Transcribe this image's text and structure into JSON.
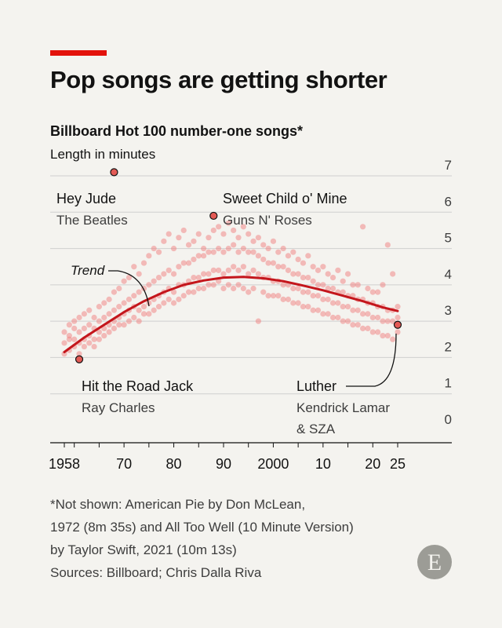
{
  "header": {
    "title": "Pop songs are getting shorter",
    "subtitle": "Billboard Hot 100 number-one songs*",
    "unit": "Length in minutes"
  },
  "chart_data": {
    "type": "scatter",
    "x_ticks": [
      {
        "value": 1958,
        "label": "1958"
      },
      {
        "value": 1970,
        "label": "70"
      },
      {
        "value": 1980,
        "label": "80"
      },
      {
        "value": 1990,
        "label": "90"
      },
      {
        "value": 2000,
        "label": "2000"
      },
      {
        "value": 2010,
        "label": "10"
      },
      {
        "value": 2020,
        "label": "20"
      },
      {
        "value": 2025,
        "label": "25"
      }
    ],
    "y_ticks": [
      0,
      1,
      2,
      3,
      4,
      5,
      6,
      7
    ],
    "xlim": [
      1958,
      2025
    ],
    "ylim": [
      0,
      7
    ],
    "colors": {
      "dots": "#f08080",
      "trend": "#c4161c",
      "highlight": "#e35a55",
      "grid": "#cfcfcf",
      "accent": "#e3120b"
    },
    "trend": [
      {
        "x": 1958,
        "y": 2.15
      },
      {
        "x": 1962,
        "y": 2.55
      },
      {
        "x": 1966,
        "y": 2.9
      },
      {
        "x": 1970,
        "y": 3.25
      },
      {
        "x": 1974,
        "y": 3.55
      },
      {
        "x": 1978,
        "y": 3.8
      },
      {
        "x": 1982,
        "y": 4.0
      },
      {
        "x": 1986,
        "y": 4.12
      },
      {
        "x": 1990,
        "y": 4.2
      },
      {
        "x": 1994,
        "y": 4.22
      },
      {
        "x": 1998,
        "y": 4.18
      },
      {
        "x": 2002,
        "y": 4.1
      },
      {
        "x": 2006,
        "y": 3.98
      },
      {
        "x": 2010,
        "y": 3.85
      },
      {
        "x": 2014,
        "y": 3.7
      },
      {
        "x": 2018,
        "y": 3.55
      },
      {
        "x": 2022,
        "y": 3.38
      },
      {
        "x": 2025,
        "y": 3.28
      }
    ],
    "trend_label": "Trend",
    "highlights": [
      {
        "x": 1968,
        "y": 7.1,
        "song": "Hey Jude",
        "artist": "The Beatles"
      },
      {
        "x": 1988,
        "y": 5.9,
        "song": "Sweet Child o' Mine",
        "artist": "Guns N' Roses"
      },
      {
        "x": 1961,
        "y": 1.95,
        "song": "Hit the Road Jack",
        "artist": "Ray Charles"
      },
      {
        "x": 2025,
        "y": 2.9,
        "song": "Luther",
        "artist_line1": "Kendrick Lamar",
        "artist_line2": "& SZA"
      }
    ],
    "series": [
      {
        "name": "",
        "points": [
          [
            1958,
            2.4
          ],
          [
            1958,
            2.7
          ],
          [
            1958,
            2.1
          ],
          [
            1959,
            2.5
          ],
          [
            1959,
            2.9
          ],
          [
            1959,
            2.2
          ],
          [
            1959,
            2.6
          ],
          [
            1960,
            2.3
          ],
          [
            1960,
            2.8
          ],
          [
            1960,
            2.5
          ],
          [
            1960,
            3.0
          ],
          [
            1961,
            2.4
          ],
          [
            1961,
            2.1
          ],
          [
            1961,
            2.7
          ],
          [
            1961,
            3.1
          ],
          [
            1962,
            2.5
          ],
          [
            1962,
            2.3
          ],
          [
            1962,
            2.8
          ],
          [
            1962,
            3.2
          ],
          [
            1963,
            2.6
          ],
          [
            1963,
            2.4
          ],
          [
            1963,
            2.9
          ],
          [
            1963,
            3.3
          ],
          [
            1964,
            2.5
          ],
          [
            1964,
            2.8
          ],
          [
            1964,
            3.1
          ],
          [
            1964,
            2.3
          ],
          [
            1965,
            2.7
          ],
          [
            1965,
            3.0
          ],
          [
            1965,
            2.5
          ],
          [
            1965,
            3.4
          ],
          [
            1966,
            2.8
          ],
          [
            1966,
            3.1
          ],
          [
            1966,
            2.6
          ],
          [
            1966,
            3.5
          ],
          [
            1967,
            2.9
          ],
          [
            1967,
            3.2
          ],
          [
            1967,
            3.6
          ],
          [
            1967,
            2.7
          ],
          [
            1968,
            3.0
          ],
          [
            1968,
            3.3
          ],
          [
            1968,
            3.8
          ],
          [
            1968,
            2.8
          ],
          [
            1969,
            3.1
          ],
          [
            1969,
            3.4
          ],
          [
            1969,
            3.9
          ],
          [
            1969,
            2.9
          ],
          [
            1970,
            3.2
          ],
          [
            1970,
            3.5
          ],
          [
            1970,
            4.1
          ],
          [
            1970,
            2.9
          ],
          [
            1971,
            3.3
          ],
          [
            1971,
            3.6
          ],
          [
            1971,
            4.2
          ],
          [
            1971,
            3.0
          ],
          [
            1972,
            3.4
          ],
          [
            1972,
            3.7
          ],
          [
            1972,
            4.5
          ],
          [
            1972,
            3.1
          ],
          [
            1973,
            3.3
          ],
          [
            1973,
            3.8
          ],
          [
            1973,
            4.3
          ],
          [
            1973,
            3.0
          ],
          [
            1974,
            3.4
          ],
          [
            1974,
            3.9
          ],
          [
            1974,
            4.6
          ],
          [
            1974,
            3.2
          ],
          [
            1975,
            3.5
          ],
          [
            1975,
            4.0
          ],
          [
            1975,
            4.8
          ],
          [
            1975,
            3.2
          ],
          [
            1976,
            3.6
          ],
          [
            1976,
            4.1
          ],
          [
            1976,
            5.0
          ],
          [
            1976,
            3.3
          ],
          [
            1977,
            3.7
          ],
          [
            1977,
            4.2
          ],
          [
            1977,
            4.9
          ],
          [
            1977,
            3.4
          ],
          [
            1978,
            3.8
          ],
          [
            1978,
            4.3
          ],
          [
            1978,
            5.2
          ],
          [
            1978,
            3.5
          ],
          [
            1979,
            3.9
          ],
          [
            1979,
            4.4
          ],
          [
            1979,
            5.4
          ],
          [
            1979,
            3.6
          ],
          [
            1980,
            3.8
          ],
          [
            1980,
            4.3
          ],
          [
            1980,
            5.0
          ],
          [
            1980,
            3.5
          ],
          [
            1981,
            4.0
          ],
          [
            1981,
            4.5
          ],
          [
            1981,
            5.3
          ],
          [
            1981,
            3.6
          ],
          [
            1982,
            4.0
          ],
          [
            1982,
            4.6
          ],
          [
            1982,
            5.5
          ],
          [
            1982,
            3.7
          ],
          [
            1983,
            4.1
          ],
          [
            1983,
            4.6
          ],
          [
            1983,
            5.1
          ],
          [
            1983,
            3.8
          ],
          [
            1984,
            4.2
          ],
          [
            1984,
            4.7
          ],
          [
            1984,
            5.2
          ],
          [
            1984,
            3.8
          ],
          [
            1985,
            4.2
          ],
          [
            1985,
            4.8
          ],
          [
            1985,
            5.4
          ],
          [
            1985,
            3.9
          ],
          [
            1986,
            4.3
          ],
          [
            1986,
            4.8
          ],
          [
            1986,
            5.0
          ],
          [
            1986,
            3.9
          ],
          [
            1987,
            4.3
          ],
          [
            1987,
            4.9
          ],
          [
            1987,
            5.3
          ],
          [
            1987,
            4.0
          ],
          [
            1988,
            4.4
          ],
          [
            1988,
            4.9
          ],
          [
            1988,
            5.5
          ],
          [
            1988,
            4.0
          ],
          [
            1989,
            4.4
          ],
          [
            1989,
            5.0
          ],
          [
            1989,
            5.6
          ],
          [
            1989,
            4.1
          ],
          [
            1990,
            4.3
          ],
          [
            1990,
            4.9
          ],
          [
            1990,
            5.4
          ],
          [
            1990,
            3.9
          ],
          [
            1991,
            4.4
          ],
          [
            1991,
            5.0
          ],
          [
            1991,
            5.7
          ],
          [
            1991,
            4.0
          ],
          [
            1992,
            4.5
          ],
          [
            1992,
            5.1
          ],
          [
            1992,
            5.5
          ],
          [
            1992,
            3.9
          ],
          [
            1993,
            4.4
          ],
          [
            1993,
            4.9
          ],
          [
            1993,
            5.3
          ],
          [
            1993,
            4.0
          ],
          [
            1994,
            4.5
          ],
          [
            1994,
            5.0
          ],
          [
            1994,
            5.6
          ],
          [
            1994,
            3.9
          ],
          [
            1995,
            4.3
          ],
          [
            1995,
            4.9
          ],
          [
            1995,
            5.4
          ],
          [
            1995,
            3.8
          ],
          [
            1996,
            4.4
          ],
          [
            1996,
            4.9
          ],
          [
            1996,
            5.2
          ],
          [
            1996,
            3.9
          ],
          [
            1997,
            4.3
          ],
          [
            1997,
            4.8
          ],
          [
            1997,
            5.3
          ],
          [
            1997,
            3.0
          ],
          [
            1998,
            4.2
          ],
          [
            1998,
            4.7
          ],
          [
            1998,
            5.1
          ],
          [
            1998,
            3.8
          ],
          [
            1999,
            4.2
          ],
          [
            1999,
            4.6
          ],
          [
            1999,
            5.0
          ],
          [
            1999,
            3.7
          ],
          [
            2000,
            4.1
          ],
          [
            2000,
            4.6
          ],
          [
            2000,
            5.2
          ],
          [
            2000,
            3.7
          ],
          [
            2001,
            4.1
          ],
          [
            2001,
            4.5
          ],
          [
            2001,
            4.9
          ],
          [
            2001,
            3.7
          ],
          [
            2002,
            4.0
          ],
          [
            2002,
            4.5
          ],
          [
            2002,
            5.0
          ],
          [
            2002,
            3.6
          ],
          [
            2003,
            4.0
          ],
          [
            2003,
            4.4
          ],
          [
            2003,
            4.8
          ],
          [
            2003,
            3.6
          ],
          [
            2004,
            3.9
          ],
          [
            2004,
            4.3
          ],
          [
            2004,
            4.9
          ],
          [
            2004,
            3.5
          ],
          [
            2005,
            3.9
          ],
          [
            2005,
            4.3
          ],
          [
            2005,
            4.7
          ],
          [
            2005,
            3.5
          ],
          [
            2006,
            3.8
          ],
          [
            2006,
            4.2
          ],
          [
            2006,
            4.6
          ],
          [
            2006,
            3.4
          ],
          [
            2007,
            3.8
          ],
          [
            2007,
            4.2
          ],
          [
            2007,
            4.8
          ],
          [
            2007,
            3.4
          ],
          [
            2008,
            3.7
          ],
          [
            2008,
            4.1
          ],
          [
            2008,
            4.5
          ],
          [
            2008,
            3.3
          ],
          [
            2009,
            3.7
          ],
          [
            2009,
            4.0
          ],
          [
            2009,
            4.4
          ],
          [
            2009,
            3.3
          ],
          [
            2010,
            3.6
          ],
          [
            2010,
            4.0
          ],
          [
            2010,
            4.5
          ],
          [
            2010,
            3.2
          ],
          [
            2011,
            3.6
          ],
          [
            2011,
            3.9
          ],
          [
            2011,
            4.3
          ],
          [
            2011,
            3.2
          ],
          [
            2012,
            3.5
          ],
          [
            2012,
            3.9
          ],
          [
            2012,
            4.2
          ],
          [
            2012,
            3.1
          ],
          [
            2013,
            3.5
          ],
          [
            2013,
            3.8
          ],
          [
            2013,
            4.4
          ],
          [
            2013,
            3.1
          ],
          [
            2014,
            3.4
          ],
          [
            2014,
            3.8
          ],
          [
            2014,
            4.1
          ],
          [
            2014,
            3.0
          ],
          [
            2015,
            3.4
          ],
          [
            2015,
            3.7
          ],
          [
            2015,
            4.3
          ],
          [
            2015,
            3.0
          ],
          [
            2016,
            3.3
          ],
          [
            2016,
            3.7
          ],
          [
            2016,
            4.0
          ],
          [
            2016,
            2.9
          ],
          [
            2017,
            3.3
          ],
          [
            2017,
            3.6
          ],
          [
            2017,
            4.0
          ],
          [
            2017,
            2.9
          ],
          [
            2018,
            3.2
          ],
          [
            2018,
            3.6
          ],
          [
            2018,
            5.6
          ],
          [
            2018,
            2.8
          ],
          [
            2019,
            3.2
          ],
          [
            2019,
            3.5
          ],
          [
            2019,
            3.9
          ],
          [
            2019,
            2.8
          ],
          [
            2020,
            3.1
          ],
          [
            2020,
            3.5
          ],
          [
            2020,
            3.8
          ],
          [
            2020,
            2.7
          ],
          [
            2021,
            3.1
          ],
          [
            2021,
            3.4
          ],
          [
            2021,
            3.8
          ],
          [
            2021,
            2.7
          ],
          [
            2022,
            3.0
          ],
          [
            2022,
            3.4
          ],
          [
            2022,
            4.0
          ],
          [
            2022,
            2.6
          ],
          [
            2023,
            3.0
          ],
          [
            2023,
            3.3
          ],
          [
            2023,
            5.1
          ],
          [
            2023,
            2.6
          ],
          [
            2024,
            3.0
          ],
          [
            2024,
            3.3
          ],
          [
            2024,
            4.3
          ],
          [
            2024,
            2.5
          ],
          [
            2025,
            3.1
          ],
          [
            2025,
            3.4
          ],
          [
            2025,
            2.7
          ]
        ]
      }
    ]
  },
  "footnote": {
    "line1": "*Not shown: American Pie by Don McLean,",
    "line2": "1972 (8m 35s) and All Too Well (10 Minute Version)",
    "line3": "by Taylor Swift, 2021 (10m 13s)",
    "line4": "Sources: Billboard; Chris Dalla Riva"
  },
  "logo": {
    "letter": "E"
  }
}
